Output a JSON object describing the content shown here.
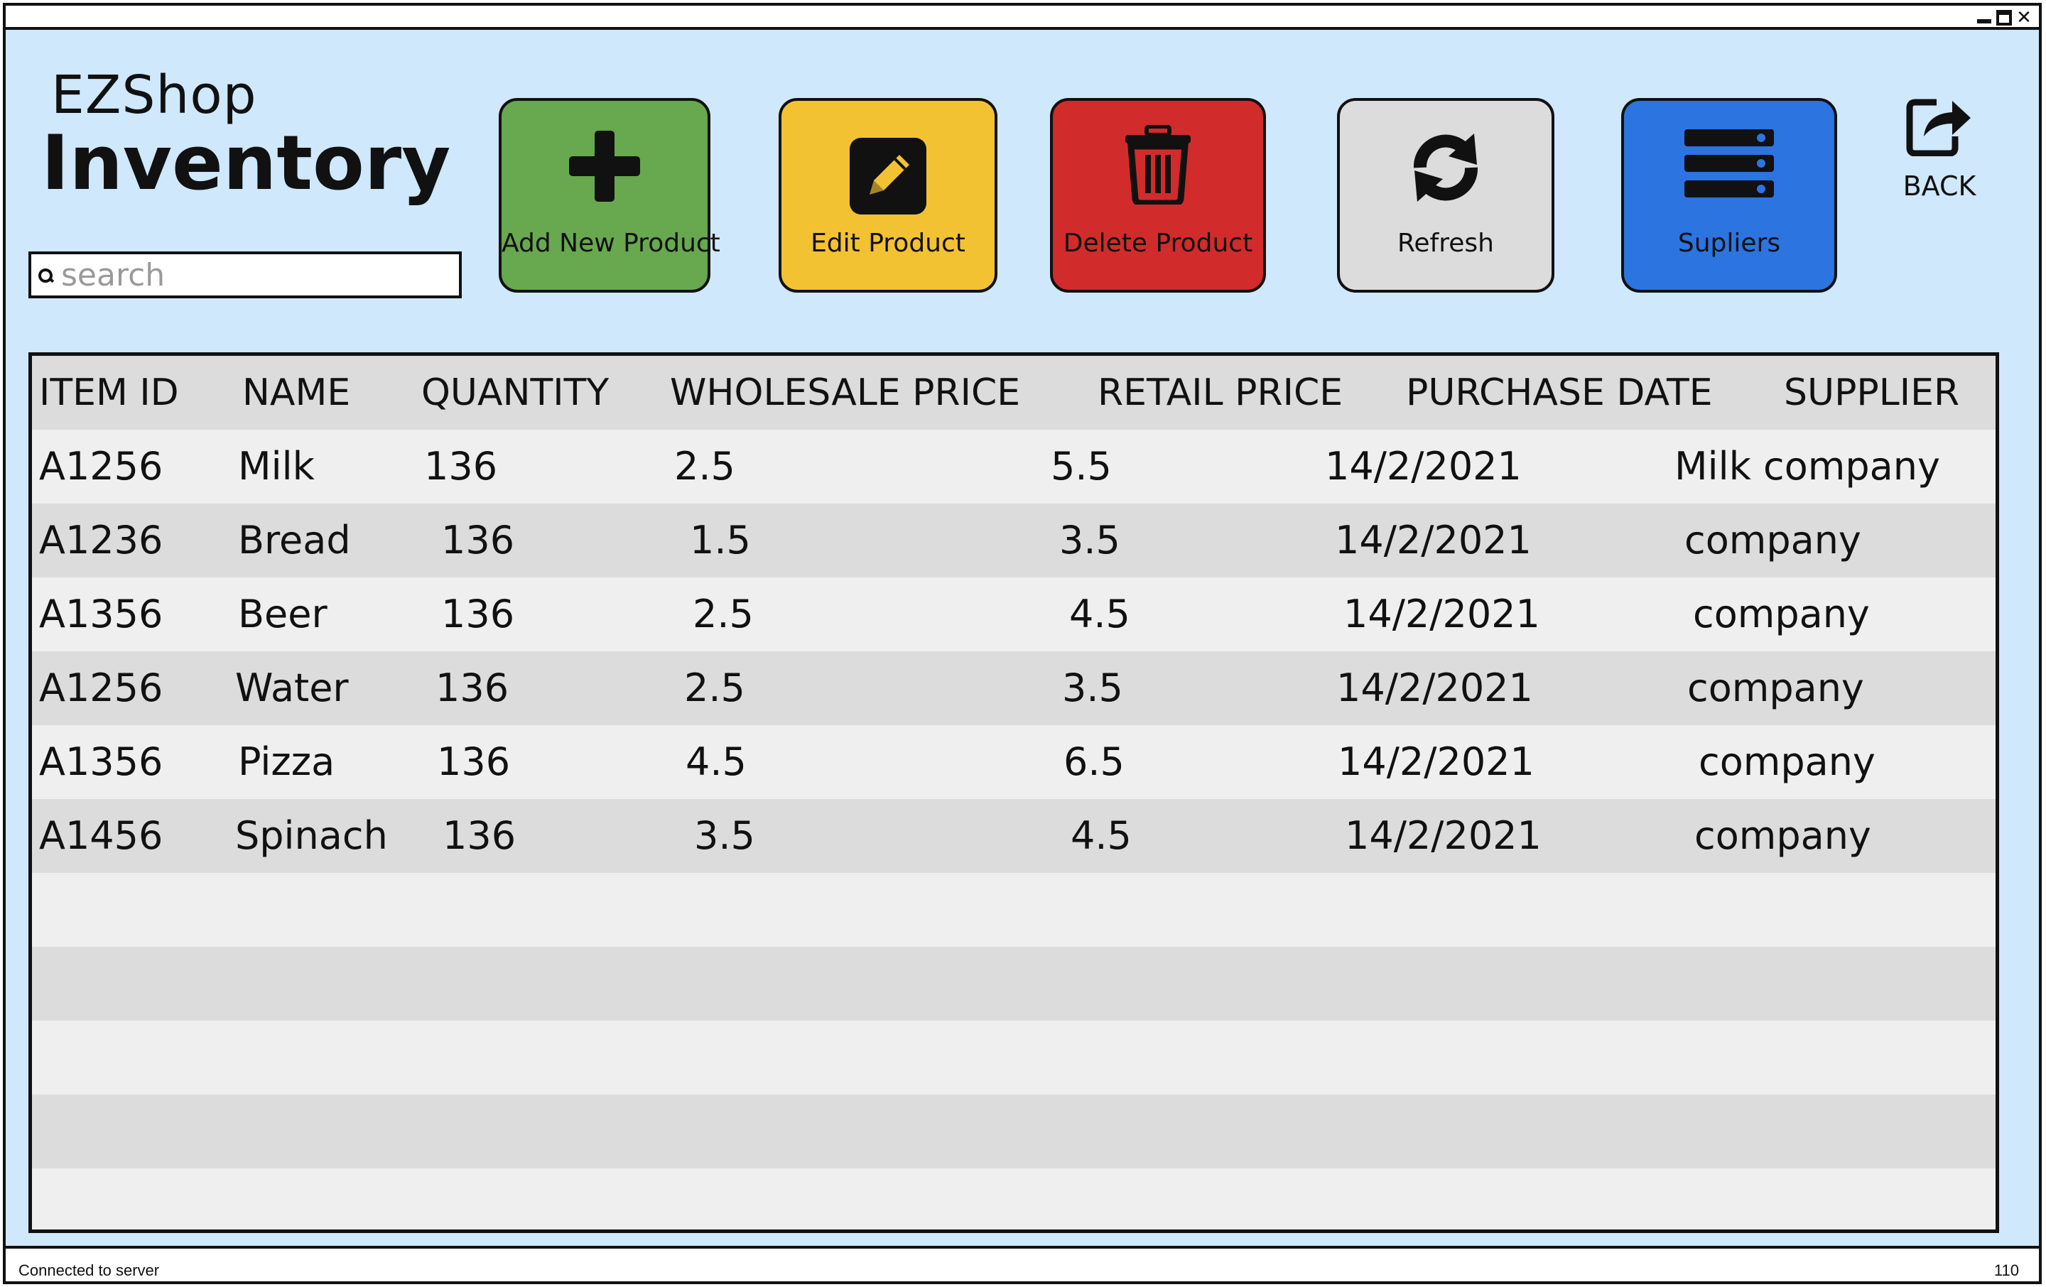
{
  "window": {
    "controls": [
      "minimize",
      "maximize",
      "close"
    ],
    "close_glyph": "✕"
  },
  "brand": {
    "subtitle": "EZShop",
    "title": "Inventory"
  },
  "search": {
    "placeholder": "search"
  },
  "toolbar": {
    "add_label": "Add New Product",
    "edit_label": "Edit Product",
    "delete_label": "Delete Product",
    "refresh_label": "Refresh",
    "suppliers_label": "Supliers",
    "back_label": "BACK"
  },
  "colors": {
    "background": "#cfe8fb",
    "add": "#68a84e",
    "edit": "#f2c233",
    "delete": "#d22b2b",
    "refresh": "#dcdcdc",
    "suppliers": "#2c74e0"
  },
  "table": {
    "columns": [
      "ITEM ID",
      "NAME",
      "QUANTITY",
      "WHOLESALE PRICE",
      "RETAIL PRICE",
      "PURCHASE DATE",
      "SUPPLIER"
    ],
    "rows": [
      [
        "A1256",
        "Milk",
        "136",
        "2.5",
        "5.5",
        "14/2/2021",
        "Milk company"
      ],
      [
        "A1236",
        "Bread",
        "136",
        "1.5",
        "3.5",
        "14/2/2021",
        "company"
      ],
      [
        "A1356",
        "Beer",
        "136",
        "2.5",
        "4.5",
        "14/2/2021",
        "company"
      ],
      [
        "A1256",
        "Water",
        "136",
        "2.5",
        "3.5",
        "14/2/2021",
        "company"
      ],
      [
        "A1356",
        "Pizza",
        "136",
        "4.5",
        "6.5",
        "14/2/2021",
        "company"
      ],
      [
        "A1456",
        "Spinach",
        "136",
        "3.5",
        "4.5",
        "14/2/2021",
        "company"
      ]
    ]
  },
  "status": {
    "left": "Connected to server",
    "right": "110"
  }
}
